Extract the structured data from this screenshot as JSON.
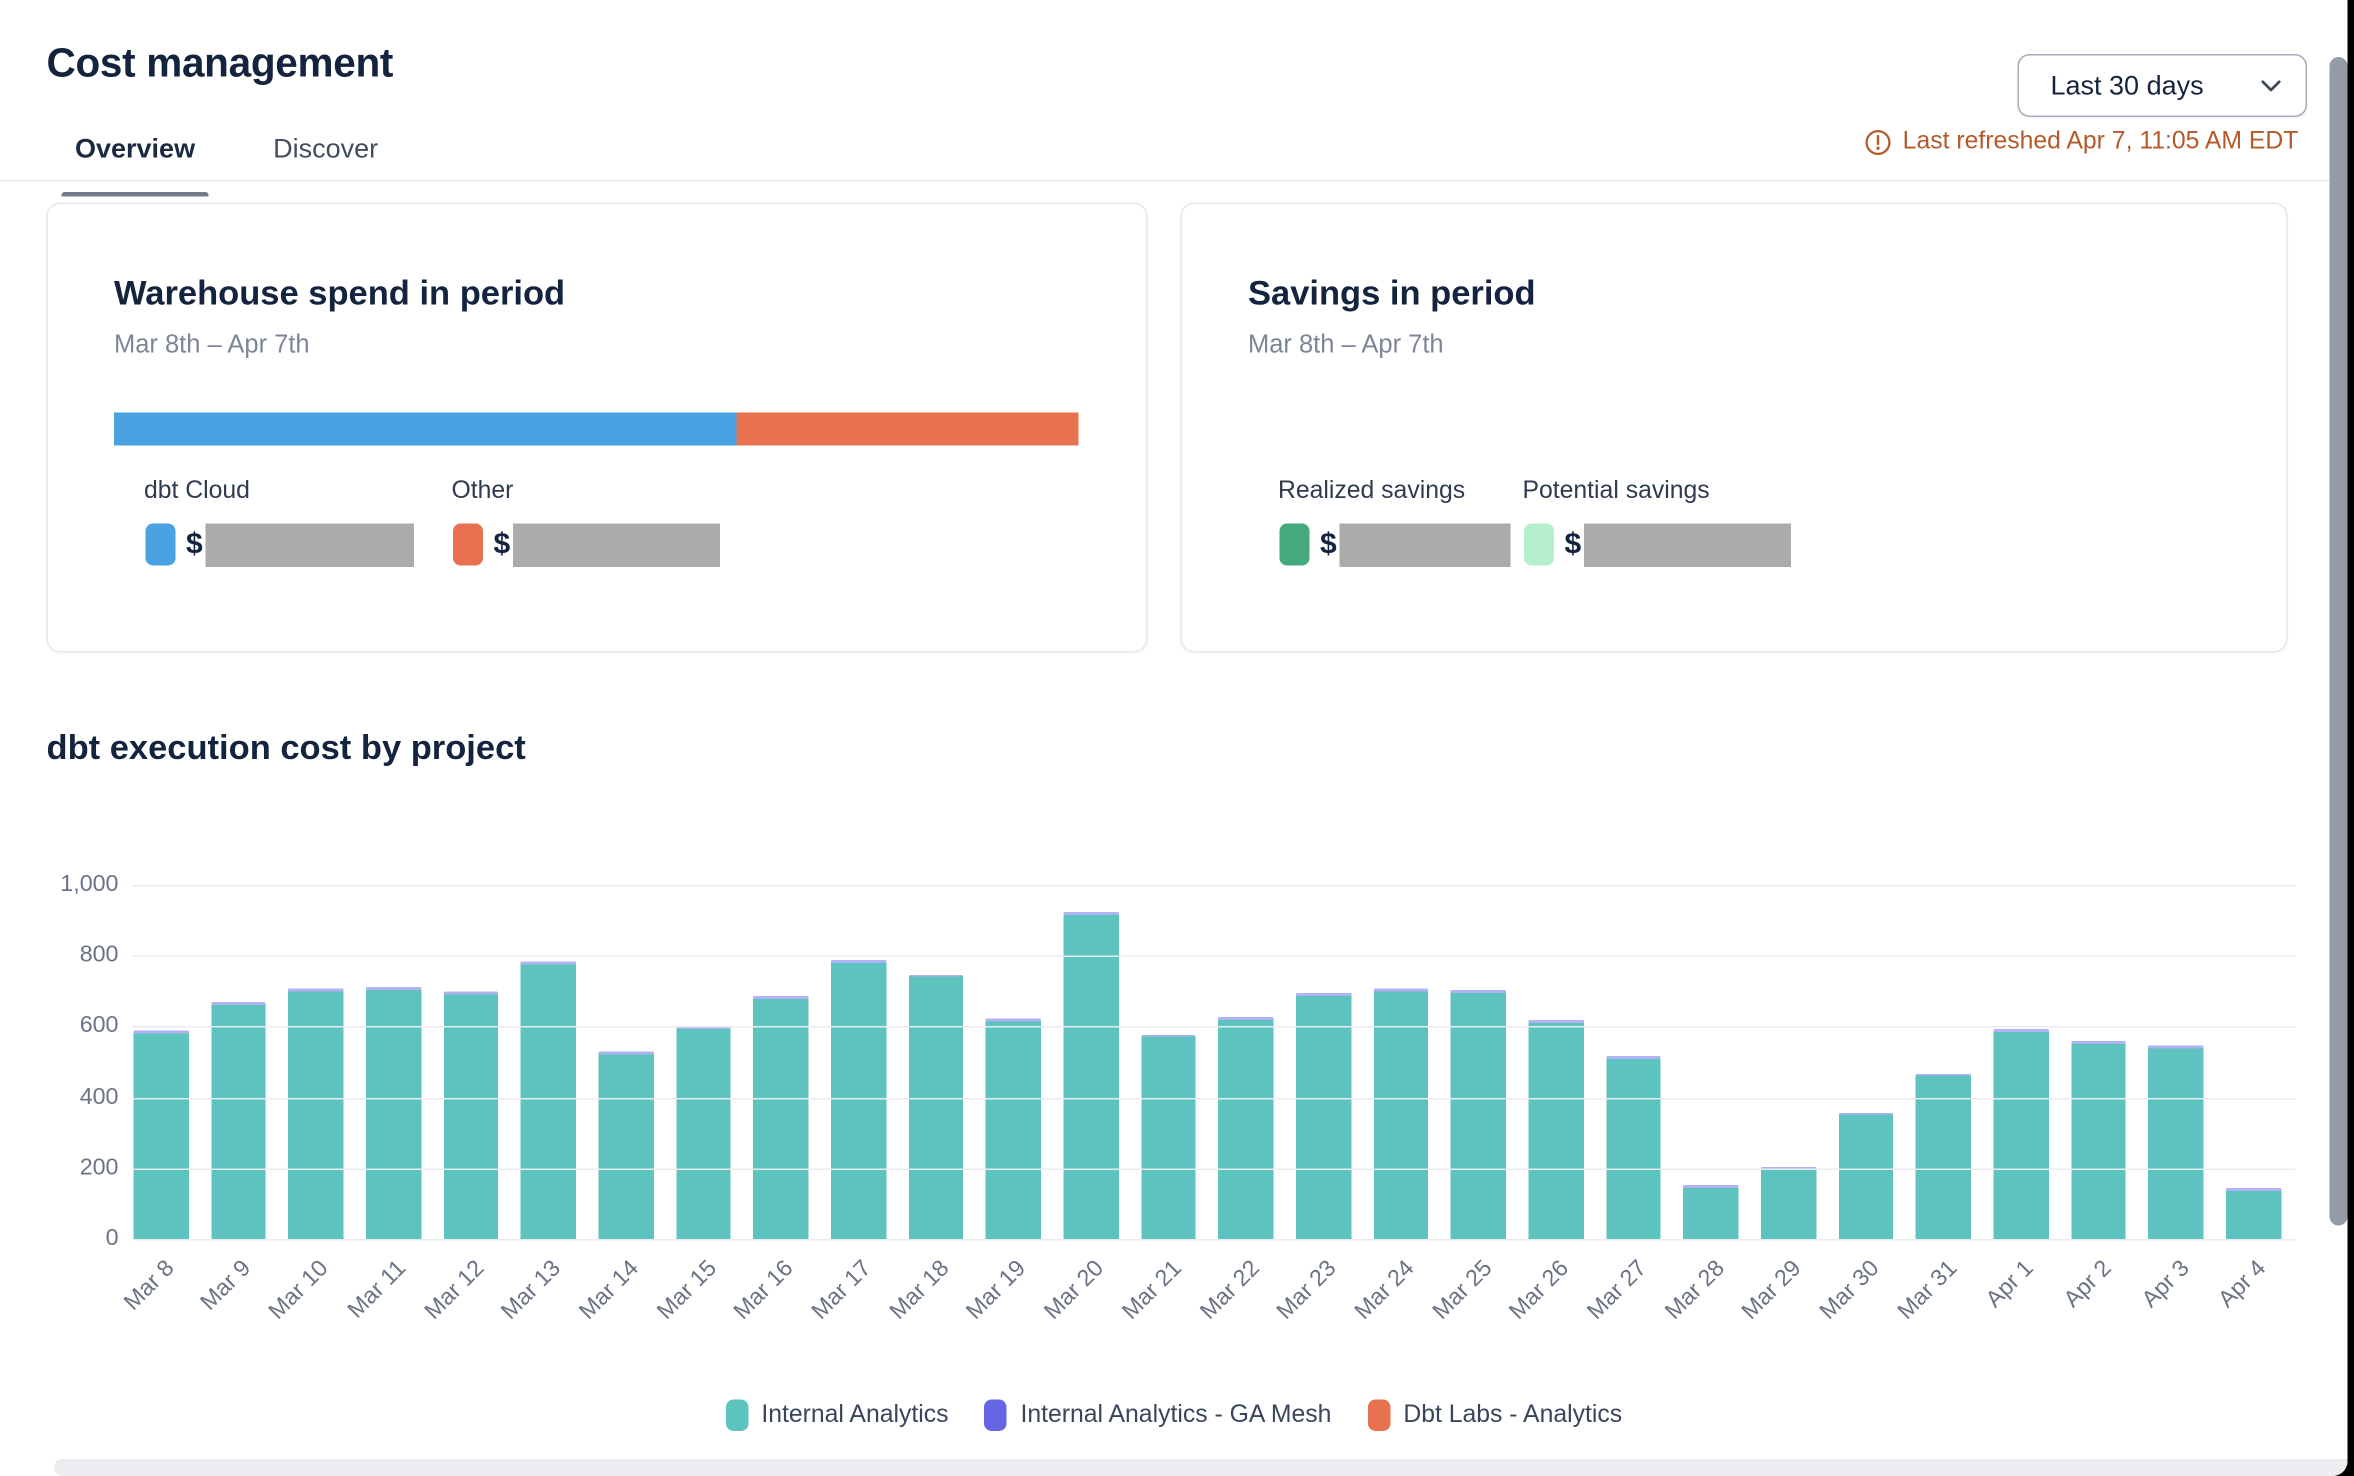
{
  "header": {
    "title": "Cost management",
    "tabs": [
      {
        "label": "Overview",
        "active": true
      },
      {
        "label": "Discover",
        "active": false
      }
    ],
    "period_selector": {
      "value": "Last 30 days"
    },
    "refresh_status": {
      "text": "Last refreshed Apr 7, 11:05 AM EDT",
      "color": "#b4592a"
    }
  },
  "cards": {
    "warehouse": {
      "title": "Warehouse spend in period",
      "subtitle": "Mar 8th – Apr 7th",
      "bar_segments": [
        {
          "label": "dbt Cloud",
          "color": "#4aa2e2",
          "width": "64.6%"
        },
        {
          "label": "Other",
          "color": "#e8714f",
          "width": "35.4%"
        }
      ],
      "items": [
        {
          "label": "dbt Cloud",
          "color": "#4aa2e2",
          "currency": "$",
          "value_redacted": true
        },
        {
          "label": "Other",
          "color": "#e8714f",
          "currency": "$",
          "value_redacted": true
        }
      ]
    },
    "savings": {
      "title": "Savings in period",
      "subtitle": "Mar 8th – Apr 7th",
      "items": [
        {
          "label": "Realized savings",
          "color": "#44aa7b",
          "currency": "$",
          "value_redacted": true
        },
        {
          "label": "Potential savings",
          "color": "#b4eecb",
          "currency": "$",
          "value_redacted": true
        }
      ]
    }
  },
  "chart_section": {
    "title": "dbt execution cost by project"
  },
  "chart_data": {
    "type": "bar",
    "stacked": true,
    "title": "dbt execution cost by project",
    "categories": [
      "Mar 8",
      "Mar 9",
      "Mar 10",
      "Mar 11",
      "Mar 12",
      "Mar 13",
      "Mar 14",
      "Mar 15",
      "Mar 16",
      "Mar 17",
      "Mar 18",
      "Mar 19",
      "Mar 20",
      "Mar 21",
      "Mar 22",
      "Mar 23",
      "Mar 24",
      "Mar 25",
      "Mar 26",
      "Mar 27",
      "Mar 28",
      "Mar 29",
      "Mar 30",
      "Mar 31",
      "Apr 1",
      "Apr 2",
      "Apr 3",
      "Apr 4"
    ],
    "series": [
      {
        "name": "Internal Analytics",
        "color": "#5cc3be",
        "values": [
          580,
          660,
          700,
          705,
          690,
          775,
          520,
          595,
          680,
          780,
          740,
          615,
          915,
          570,
          620,
          685,
          700,
          695,
          610,
          510,
          145,
          195,
          350,
          460,
          585,
          550,
          540,
          135
        ]
      },
      {
        "name": "Internal Analytics - GA Mesh",
        "color": "#6466e3",
        "values": [
          8,
          8,
          8,
          8,
          8,
          8,
          8,
          8,
          8,
          8,
          8,
          8,
          8,
          8,
          8,
          8,
          8,
          8,
          8,
          8,
          8,
          8,
          8,
          8,
          8,
          8,
          8,
          8
        ]
      },
      {
        "name": "Dbt Labs - Analytics",
        "color": "#e8714f",
        "values": [
          0,
          0,
          0,
          0,
          0,
          0,
          0,
          0,
          0,
          0,
          0,
          0,
          0,
          0,
          0,
          0,
          0,
          0,
          0,
          0,
          0,
          0,
          0,
          0,
          0,
          0,
          0,
          0
        ]
      }
    ],
    "ylim": [
      0,
      1000
    ],
    "yticks": [
      "1,000",
      "800",
      "600",
      "400",
      "200",
      "0"
    ],
    "grid": "horizontal",
    "legend_position": "bottom",
    "x_tick_rotation": -45
  }
}
